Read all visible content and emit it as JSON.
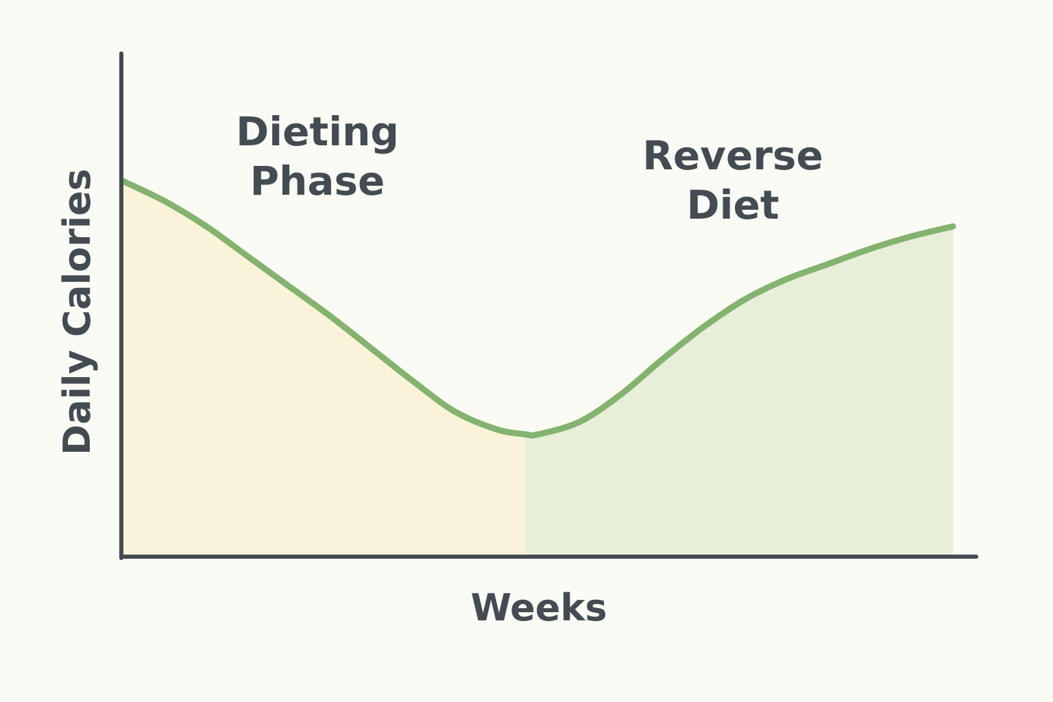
{
  "chart_data": {
    "type": "area",
    "xlabel": "Weeks",
    "ylabel": "Daily Calories",
    "xlim": [
      0,
      100
    ],
    "ylim": [
      0,
      100
    ],
    "grid": false,
    "legend": "none",
    "x_tick_labels": [],
    "y_tick_labels": [],
    "regions": [
      {
        "label_lines": [
          "Dieting",
          "Phase"
        ],
        "x_start": 0,
        "x_end": 48.5,
        "fill": "#fbf3d9"
      },
      {
        "label_lines": [
          "Reverse",
          "Diet"
        ],
        "x_start": 48.5,
        "x_end": 100,
        "fill": "#e8efd9"
      }
    ],
    "series": [
      {
        "color": "#84b36f",
        "x": [
          0,
          5,
          10,
          15,
          20,
          25,
          30,
          35,
          40,
          45,
          48.5,
          50,
          55,
          60,
          65,
          70,
          75,
          80,
          85,
          90,
          95,
          100
        ],
        "values": [
          74.5,
          70.5,
          65.5,
          59.5,
          53.5,
          47.5,
          41,
          34.5,
          28.5,
          25,
          24,
          24,
          26.5,
          32,
          39,
          45.5,
          51,
          55,
          58,
          61,
          63.5,
          65.5
        ]
      }
    ],
    "colors": {
      "background": "#fbfbf5",
      "axis": "#434b53",
      "text": "#434b53",
      "line": "#84b36f"
    }
  }
}
